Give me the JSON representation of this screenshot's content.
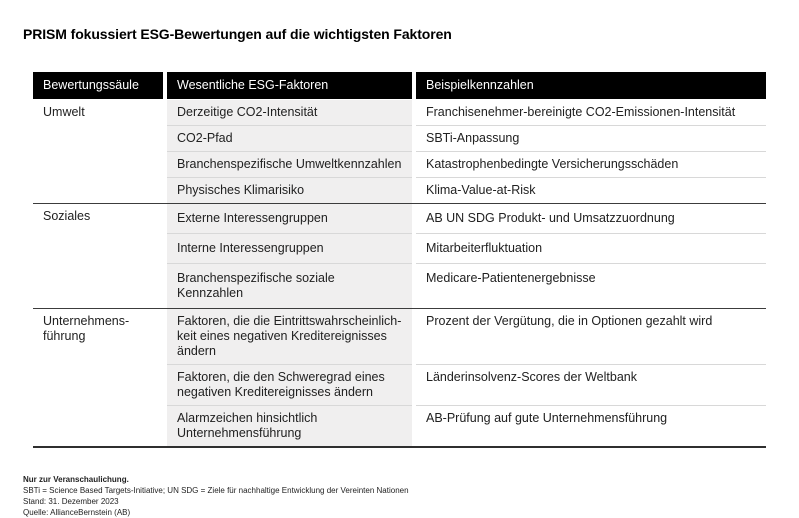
{
  "title": "PRISM fokussiert ESG-Bewertungen auf die wichtigsten Faktoren",
  "table": {
    "headers": [
      "Bewertungssäule",
      "Wesentliche ESG-Faktoren",
      "Beispielkennzahlen"
    ],
    "sections": [
      {
        "pillar": "Umwelt",
        "rows": [
          {
            "factor": "Derzeitige CO2-Intensität",
            "example": "Franchisenehmer-bereinigte CO2-Emissionen-Intensität"
          },
          {
            "factor": "CO2-Pfad",
            "example": "SBTi-Anpassung"
          },
          {
            "factor": "Branchenspezifische Umweltkennzahlen",
            "example": "Katastrophenbedingte Versicherungsschäden"
          },
          {
            "factor": "Physisches Klimarisiko",
            "example": "Klima-Value-at-Risk"
          }
        ]
      },
      {
        "pillar": "Soziales",
        "rows": [
          {
            "factor": "Externe Interessengruppen",
            "example": "AB UN SDG Produkt- und Umsatzzuordnung"
          },
          {
            "factor": "Interne Interessengruppen",
            "example": "Mitarbeiterfluktuation"
          },
          {
            "factor": "Branchenspezifische soziale Kennzahlen",
            "example": "Medicare-Patientenergebnisse"
          }
        ]
      },
      {
        "pillar": "Unternehmens-\nführung",
        "rows": [
          {
            "factor": "Faktoren, die die Eintrittswahrscheinlich-\nkeit eines negativen Kreditereignisses\nändern",
            "example": "Prozent der Vergütung, die in Optionen gezahlt wird"
          },
          {
            "factor": "Faktoren, die den Schweregrad eines\nnegativen Kreditereignisses ändern",
            "example": "Länderinsolvenz-Scores der Weltbank"
          },
          {
            "factor": "Alarmzeichen hinsichtlich\nUnternehmensführung",
            "example": "AB-Prüfung auf gute Unternehmensführung"
          }
        ]
      }
    ]
  },
  "footnotes": {
    "disclaimer": "Nur zur Veranschaulichung.",
    "definitions": "SBTi = Science Based Targets-Initiative; UN SDG = Ziele für nachhaltige Entwicklung der Vereinten Nationen",
    "as_of": "Stand: 31. Dezember 2023",
    "source": "Quelle: AllianceBernstein (AB)"
  },
  "colors": {
    "header_bg": "#000000",
    "header_text": "#ffffff",
    "factor_column_bg": "#f0efef",
    "row_divider": "#d8d8d8",
    "section_divider": "#3c3c3c",
    "body_text": "#212121"
  }
}
